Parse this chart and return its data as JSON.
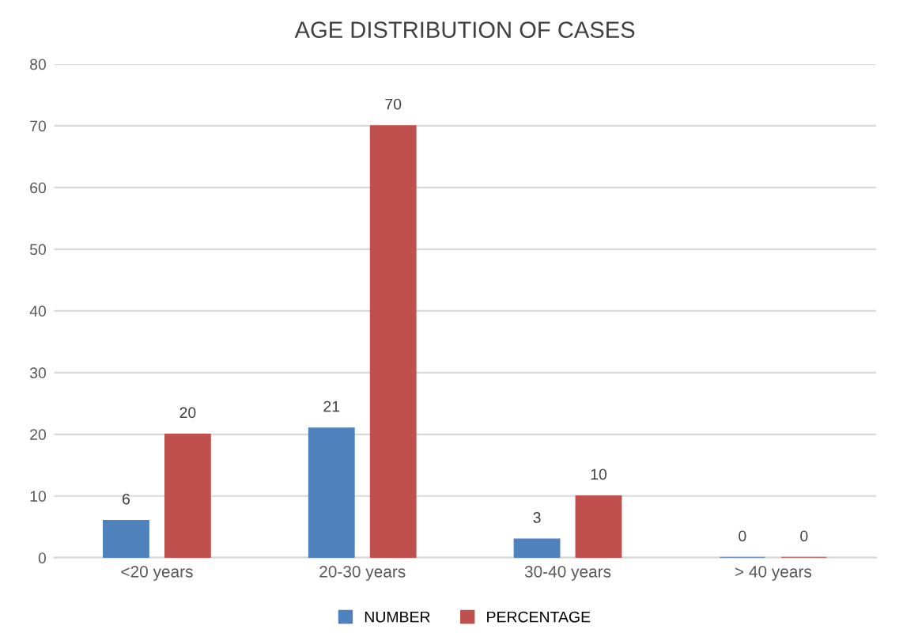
{
  "chart_data": {
    "type": "bar",
    "title": "AGE DISTRIBUTION OF CASES",
    "categories": [
      "<20 years",
      "20-30 years",
      "30-40 years",
      "> 40 years"
    ],
    "series": [
      {
        "name": "NUMBER",
        "color": "#4f81bd",
        "values": [
          6,
          21,
          3,
          0
        ]
      },
      {
        "name": "PERCENTAGE",
        "color": "#c0504d",
        "values": [
          20,
          70,
          10,
          0
        ]
      }
    ],
    "ylim": [
      0,
      80
    ],
    "yticks": [
      0,
      10,
      20,
      30,
      40,
      50,
      60,
      70,
      80
    ],
    "grid": "y",
    "legend": "bottom",
    "data_labels": true
  }
}
